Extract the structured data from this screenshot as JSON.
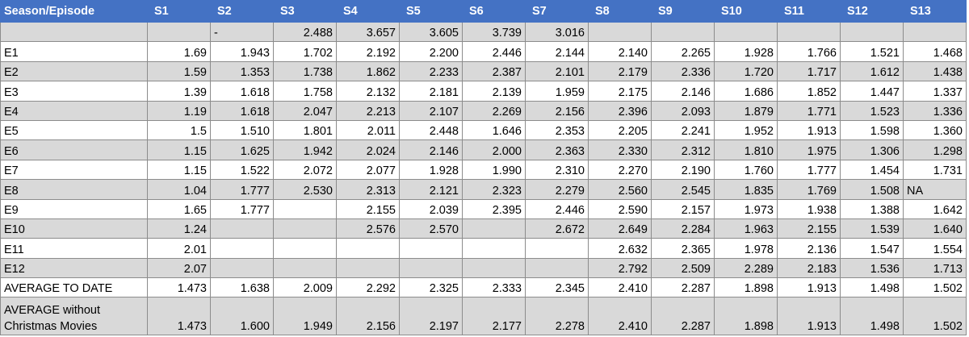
{
  "table": {
    "header": [
      "Season/Episode",
      "S1",
      "S2",
      "S3",
      "S4",
      "S5",
      "S6",
      "S7",
      "S8",
      "S9",
      "S10",
      "S11",
      "S12",
      "S13"
    ],
    "rows": [
      [
        null,
        null,
        "-",
        "2.488",
        "3.657",
        "3.605",
        "3.739",
        "3.016",
        null,
        null,
        null,
        null,
        null,
        null
      ],
      [
        "E1",
        "1.69",
        "1.943",
        "1.702",
        "2.192",
        "2.200",
        "2.446",
        "2.144",
        "2.140",
        "2.265",
        "1.928",
        "1.766",
        "1.521",
        "1.468"
      ],
      [
        "E2",
        "1.59",
        "1.353",
        "1.738",
        "1.862",
        "2.233",
        "2.387",
        "2.101",
        "2.179",
        "2.336",
        "1.720",
        "1.717",
        "1.612",
        "1.438"
      ],
      [
        "E3",
        "1.39",
        "1.618",
        "1.758",
        "2.132",
        "2.181",
        "2.139",
        "1.959",
        "2.175",
        "2.146",
        "1.686",
        "1.852",
        "1.447",
        "1.337"
      ],
      [
        "E4",
        "1.19",
        "1.618",
        "2.047",
        "2.213",
        "2.107",
        "2.269",
        "2.156",
        "2.396",
        "2.093",
        "1.879",
        "1.771",
        "1.523",
        "1.336"
      ],
      [
        "E5",
        "1.5",
        "1.510",
        "1.801",
        "2.011",
        "2.448",
        "1.646",
        "2.353",
        "2.205",
        "2.241",
        "1.952",
        "1.913",
        "1.598",
        "1.360"
      ],
      [
        "E6",
        "1.15",
        "1.625",
        "1.942",
        "2.024",
        "2.146",
        "2.000",
        "2.363",
        "2.330",
        "2.312",
        "1.810",
        "1.975",
        "1.306",
        "1.298"
      ],
      [
        "E7",
        "1.15",
        "1.522",
        "2.072",
        "2.077",
        "1.928",
        "1.990",
        "2.310",
        "2.270",
        "2.190",
        "1.760",
        "1.777",
        "1.454",
        "1.731"
      ],
      [
        "E8",
        "1.04",
        "1.777",
        "2.530",
        "2.313",
        "2.121",
        "2.323",
        "2.279",
        "2.560",
        "2.545",
        "1.835",
        "1.769",
        "1.508",
        "NA"
      ],
      [
        "E9",
        "1.65",
        "1.777",
        null,
        "2.155",
        "2.039",
        "2.395",
        "2.446",
        "2.590",
        "2.157",
        "1.973",
        "1.938",
        "1.388",
        "1.642"
      ],
      [
        "E10",
        "1.24",
        null,
        null,
        "2.576",
        "2.570",
        null,
        "2.672",
        "2.649",
        "2.284",
        "1.963",
        "2.155",
        "1.539",
        "1.640"
      ],
      [
        "E11",
        "2.01",
        null,
        null,
        null,
        null,
        null,
        null,
        "2.632",
        "2.365",
        "1.978",
        "2.136",
        "1.547",
        "1.554"
      ],
      [
        "E12",
        "2.07",
        null,
        null,
        null,
        null,
        null,
        null,
        "2.792",
        "2.509",
        "2.289",
        "2.183",
        "1.536",
        "1.713"
      ],
      [
        "AVERAGE TO DATE",
        "1.473",
        "1.638",
        "2.009",
        "2.292",
        "2.325",
        "2.333",
        "2.345",
        "2.410",
        "2.287",
        "1.898",
        "1.913",
        "1.498",
        "1.502"
      ],
      [
        "AVERAGE without Christmas Movies",
        "1.473",
        "1.600",
        "1.949",
        "2.156",
        "2.197",
        "2.177",
        "2.278",
        "2.410",
        "2.287",
        "1.898",
        "1.913",
        "1.498",
        "1.502"
      ]
    ]
  }
}
